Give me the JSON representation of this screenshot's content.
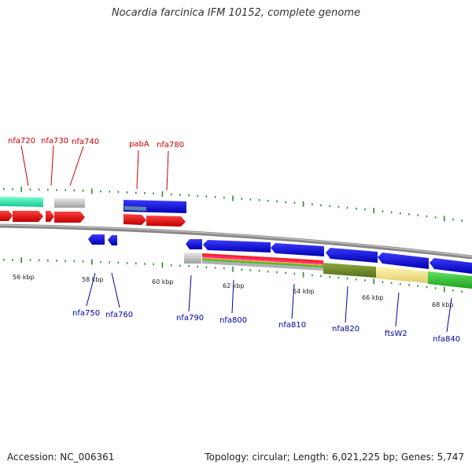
{
  "header": {
    "title": "Nocardia farcinica IFM 10152, complete genome"
  },
  "footer": {
    "accession": "Accession: NC_006361",
    "topology": "Topology: circular; Length: 6,021,225 bp; Genes: 5,747"
  },
  "colors": {
    "forward_label": "#cc0000",
    "reverse_label": "#0000aa",
    "backbone": "#888888",
    "tick": "#2e8b2e"
  },
  "scale_labels": [
    "56 kbp",
    "58 kbp",
    "60 kbp",
    "62 kbp",
    "64 kbp",
    "66 kbp",
    "68 kbp"
  ],
  "forward_genes": [
    "nfa720",
    "nfa730",
    "nfa740",
    "pabA",
    "nfa780"
  ],
  "reverse_genes": [
    "nfa750",
    "nfa760",
    "nfa790",
    "nfa800",
    "nfa810",
    "nfa820",
    "ftsW2",
    "nfa840"
  ]
}
